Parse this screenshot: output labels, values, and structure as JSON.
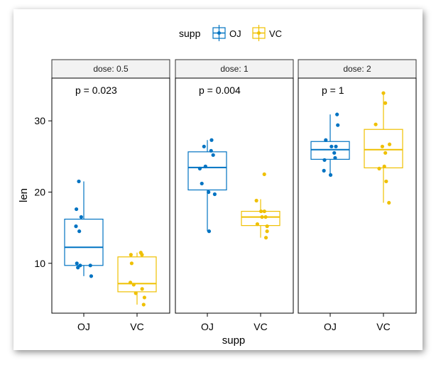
{
  "chart_data": {
    "type": "box",
    "title": "",
    "xlabel": "supp",
    "ylabel": "len",
    "ylim": [
      3,
      36
    ],
    "y_ticks": [
      10,
      20,
      30
    ],
    "legend": {
      "title": "supp",
      "position": "top",
      "entries": [
        {
          "name": "OJ",
          "color": "#0073C2"
        },
        {
          "name": "VC",
          "color": "#EFC000"
        }
      ]
    },
    "categories": [
      "OJ",
      "VC"
    ],
    "facets": [
      {
        "label": "dose: 0.5",
        "pvalue": "p = 0.023",
        "groups": [
          {
            "name": "OJ",
            "min": 8.2,
            "q1": 9.7,
            "median": 12.25,
            "q3": 16.2,
            "max": 21.5,
            "points": [
              15.2,
              21.5,
              17.6,
              9.7,
              14.5,
              10.0,
              8.2,
              9.4,
              16.5,
              9.7
            ]
          },
          {
            "name": "VC",
            "min": 4.2,
            "q1": 6.0,
            "median": 7.15,
            "q3": 10.9,
            "max": 11.5,
            "points": [
              4.2,
              11.5,
              7.3,
              5.8,
              6.4,
              10.0,
              11.2,
              11.2,
              5.2,
              7.0
            ]
          }
        ]
      },
      {
        "label": "dose: 1",
        "pvalue": "p = 0.004",
        "groups": [
          {
            "name": "OJ",
            "min": 14.5,
            "q1": 20.3,
            "median": 23.45,
            "q3": 25.65,
            "max": 27.3,
            "points": [
              19.7,
              23.3,
              23.6,
              26.4,
              20.0,
              25.2,
              25.8,
              21.2,
              14.5,
              27.3
            ]
          },
          {
            "name": "VC",
            "min": 13.6,
            "q1": 15.3,
            "median": 16.5,
            "q3": 17.3,
            "max": 19.0,
            "points": [
              16.5,
              16.5,
              15.2,
              17.3,
              22.5,
              17.3,
              13.6,
              14.5,
              18.8,
              15.5
            ]
          }
        ]
      },
      {
        "label": "dose: 2",
        "pvalue": "p = 1",
        "groups": [
          {
            "name": "OJ",
            "min": 22.4,
            "q1": 24.6,
            "median": 25.95,
            "q3": 27.1,
            "max": 30.9,
            "points": [
              25.5,
              26.4,
              22.4,
              24.5,
              24.8,
              30.9,
              26.4,
              27.3,
              29.4,
              23.0
            ]
          },
          {
            "name": "VC",
            "min": 18.5,
            "q1": 23.4,
            "median": 25.95,
            "q3": 28.8,
            "max": 33.9,
            "points": [
              23.6,
              18.5,
              33.9,
              25.5,
              26.4,
              32.5,
              26.7,
              21.5,
              23.3,
              29.5
            ]
          }
        ]
      }
    ]
  }
}
